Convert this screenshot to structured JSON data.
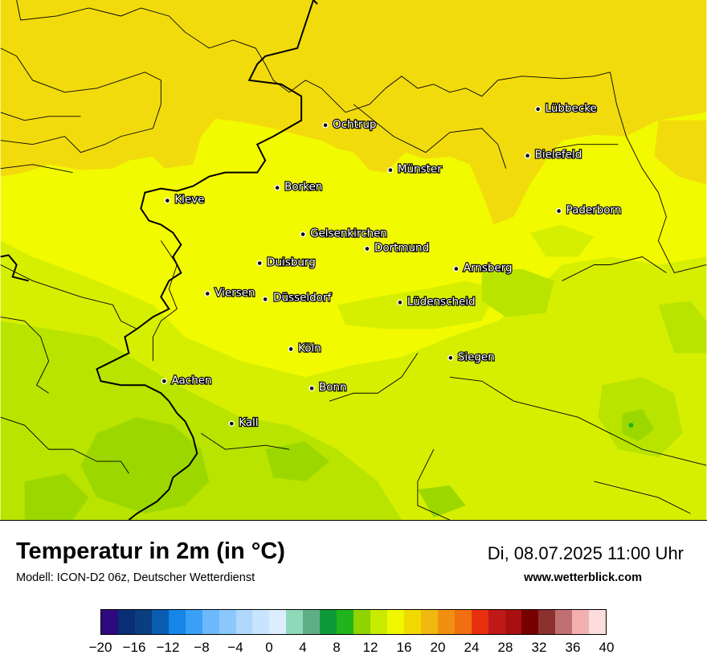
{
  "title": "Temperatur in 2m (in °C)",
  "subtitle": "Modell: ICON-D2 06z, Deutscher Wetterdienst",
  "datetime": "Di, 08.07.2025 11:00 Uhr",
  "website": "www.wetterblick.com",
  "cities": [
    {
      "name": "Lübbecke"
    },
    {
      "name": "Ochtrup"
    },
    {
      "name": "Bielefeld"
    },
    {
      "name": "Münster"
    },
    {
      "name": "Borken"
    },
    {
      "name": "Kleve"
    },
    {
      "name": "Paderborn"
    },
    {
      "name": "Gelsenkirchen"
    },
    {
      "name": "Dortmund"
    },
    {
      "name": "Duisburg"
    },
    {
      "name": "Arnsberg"
    },
    {
      "name": "Viersen"
    },
    {
      "name": "Düsseldorf"
    },
    {
      "name": "Lüdenscheid"
    },
    {
      "name": "Köln"
    },
    {
      "name": "Siegen"
    },
    {
      "name": "Aachen"
    },
    {
      "name": "Bonn"
    },
    {
      "name": "Kall"
    }
  ],
  "legend": {
    "colors": [
      "#2e0a7e",
      "#0a2e73",
      "#093f80",
      "#0a5cb0",
      "#1586e8",
      "#3aa0f5",
      "#6db8fa",
      "#8ac8fc",
      "#b0d8fd",
      "#c8e4fe",
      "#dcedfe",
      "#8fd9b8",
      "#5fae86",
      "#0f9a3a",
      "#20b51c",
      "#8fd400",
      "#c8eb00",
      "#f0f800",
      "#f0d800",
      "#f0b810",
      "#f09010",
      "#f07010",
      "#e83010",
      "#c01818",
      "#a81010",
      "#780000",
      "#8c3030",
      "#c07070",
      "#f4b0b0",
      "#fcdcdc"
    ],
    "ticks": [
      "−20",
      "−16",
      "−12",
      "−8",
      "−4",
      "0",
      "4",
      "8",
      "12",
      "16",
      "20",
      "24",
      "28",
      "32",
      "36",
      "40"
    ],
    "min": -20,
    "max": 40
  },
  "colors": {
    "orange_yellow": "#f2db0c",
    "yellow": "#f2fa00",
    "yellow_green": "#d6ef00",
    "light_green": "#b8e400",
    "green": "#9cd800"
  }
}
